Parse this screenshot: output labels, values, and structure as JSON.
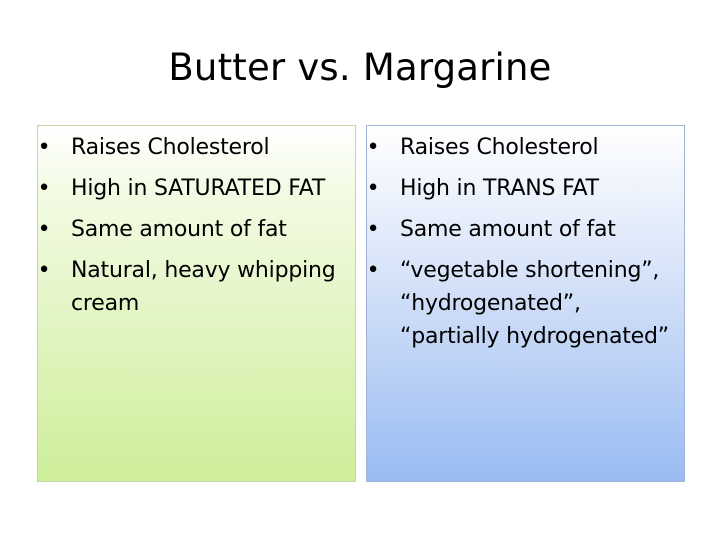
{
  "slide": {
    "title": "Butter vs. Margarine"
  },
  "butter": {
    "bullet_icon": "bullet-dot",
    "items": [
      "Raises Cholesterol",
      "High in SATURATED FAT",
      "Same amount of fat",
      "Natural, heavy whipping cream"
    ],
    "panel_color": "#e2f5c3"
  },
  "margarine": {
    "bullet_icon": "bullet-dot",
    "items": [
      "Raises Cholesterol",
      "High in TRANS FAT",
      "Same amount of fat",
      "“vegetable shortening”, “hydrogenated”, “partially hydrogenated”"
    ],
    "panel_color": "#c9daf7"
  }
}
